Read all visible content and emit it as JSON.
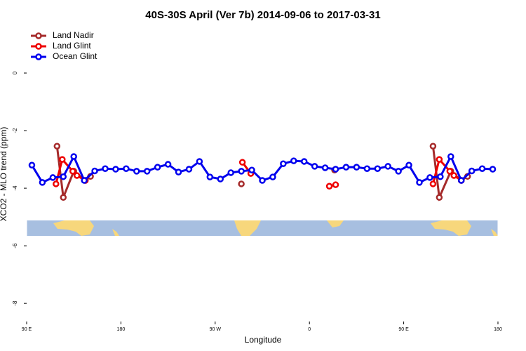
{
  "chart_data": {
    "type": "line",
    "title": "40S-30S April (Ver 7b)   2014-09-06 to 2017-03-31",
    "x_label": "Longitude",
    "y_label": "XCO2 - MLO trend (ppm)",
    "xlim": [
      90,
      540
    ],
    "xticks": [
      {
        "value": 90,
        "label": "90 E"
      },
      {
        "value": 180,
        "label": "180"
      },
      {
        "value": 270,
        "label": "90 W"
      },
      {
        "value": 360,
        "label": "0"
      },
      {
        "value": 450,
        "label": "90 E"
      },
      {
        "value": 540,
        "label": "180"
      }
    ],
    "ylim": [
      -8.63,
      1.61
    ],
    "yticks": [
      -8,
      -6,
      -4,
      -2,
      0
    ],
    "legend": "top-left",
    "series": [
      {
        "name": "Land Nadir",
        "color": "#a52a2a",
        "x": [
          119,
          125,
          135,
          146,
          151,
          null,
          295,
          null,
          384,
          null,
          478,
          484,
          495,
          505,
          511
        ],
        "values": [
          -2.54,
          -4.32,
          -3.41,
          -3.73,
          -3.59,
          null,
          -3.85,
          null,
          -3.37,
          null,
          -2.54,
          -4.32,
          -3.41,
          -3.73,
          -3.59
        ]
      },
      {
        "name": "Land Glint",
        "color": "#ee0000",
        "x": [
          118,
          124,
          134,
          138,
          146,
          null,
          296,
          304,
          null,
          379,
          385,
          null,
          478,
          484,
          494,
          498,
          505
        ],
        "values": [
          -3.85,
          -3.0,
          -3.41,
          -3.56,
          -3.73,
          null,
          -3.1,
          -3.49,
          null,
          -3.93,
          -3.88,
          null,
          -3.85,
          -3.0,
          -3.41,
          -3.56,
          -3.73
        ]
      },
      {
        "name": "Ocean Glint",
        "color": "#0000ee",
        "x": [
          95,
          105,
          115,
          125,
          135,
          145,
          155,
          165,
          175,
          185,
          195,
          205,
          215,
          225,
          235,
          245,
          255,
          265,
          275,
          285,
          295,
          305,
          315,
          325,
          335,
          345,
          355,
          365,
          375,
          385,
          395,
          405,
          415,
          425,
          435,
          445,
          455,
          465,
          475,
          485,
          495,
          505,
          515,
          525,
          535
        ],
        "values": [
          -3.2,
          -3.8,
          -3.63,
          -3.6,
          -2.9,
          -3.73,
          -3.4,
          -3.32,
          -3.34,
          -3.32,
          -3.41,
          -3.41,
          -3.27,
          -3.17,
          -3.44,
          -3.34,
          -3.07,
          -3.61,
          -3.68,
          -3.46,
          -3.41,
          -3.37,
          -3.73,
          -3.61,
          -3.15,
          -3.05,
          -3.07,
          -3.24,
          -3.29,
          -3.34,
          -3.27,
          -3.27,
          -3.32,
          -3.32,
          -3.24,
          -3.41,
          -3.2,
          -3.8,
          -3.63,
          -3.6,
          -2.9,
          -3.73,
          -3.4,
          -3.32,
          -3.34
        ]
      }
    ]
  }
}
